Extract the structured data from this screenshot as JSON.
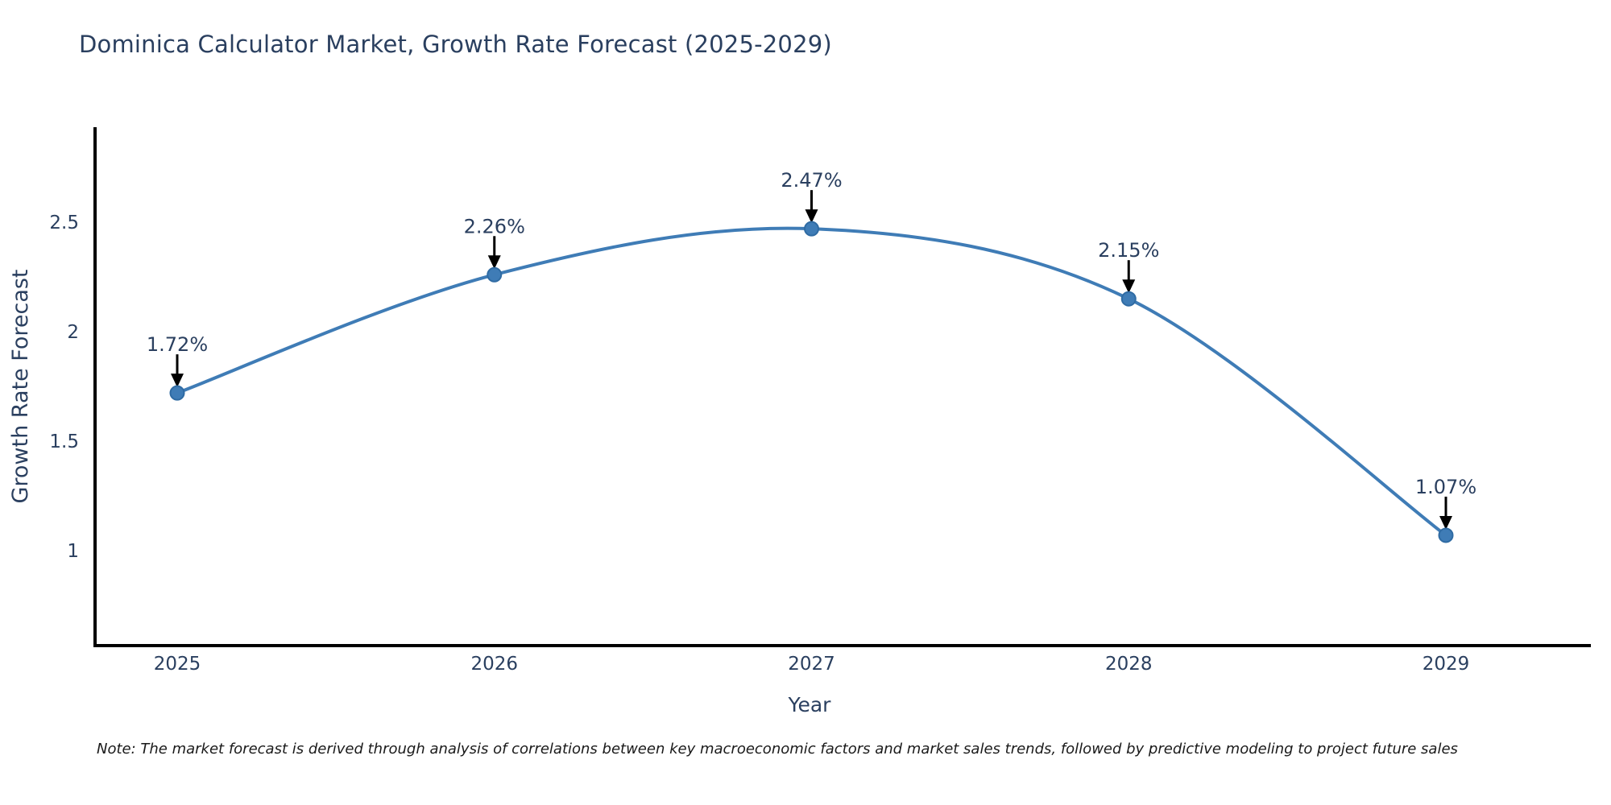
{
  "chart": {
    "title": "Dominica Calculator Market, Growth Rate Forecast (2025-2029)"
  },
  "note": {
    "text": "Note: The market forecast is derived through analysis of correlations between key macroeconomic factors and market sales trends, followed by predictive modeling to project future sales"
  },
  "chart_data": {
    "type": "line",
    "title": "Dominica Calculator Market, Growth Rate Forecast (2025-2029)",
    "xlabel": "Year",
    "ylabel": "Growth Rate Forecast",
    "x": [
      2025,
      2026,
      2027,
      2028,
      2029
    ],
    "x_tick_labels": [
      "2025",
      "2026",
      "2027",
      "2028",
      "2029"
    ],
    "series": [
      {
        "name": "Growth Rate Forecast",
        "values": [
          1.72,
          2.26,
          2.47,
          2.15,
          1.07
        ]
      }
    ],
    "data_labels": [
      "1.72%",
      "2.26%",
      "2.47%",
      "2.15%",
      "1.07%"
    ],
    "yticks": [
      1,
      1.5,
      2,
      2.5
    ],
    "ytick_labels": [
      "1",
      "1.5",
      "2",
      "2.5"
    ],
    "ylim": [
      0.57,
      2.93
    ],
    "grid": false,
    "legend": "none",
    "curve": "spline",
    "colors": {
      "line": "#3f7cb6",
      "marker_fill": "#3f7cb6",
      "marker_edge": "#2f6ba3",
      "axis_line": "#000000",
      "tick_text": "#2a3f5f",
      "axis_title_text": "#2a3f5f",
      "data_label_text": "#2a3f5f",
      "arrow": "#000000"
    }
  }
}
